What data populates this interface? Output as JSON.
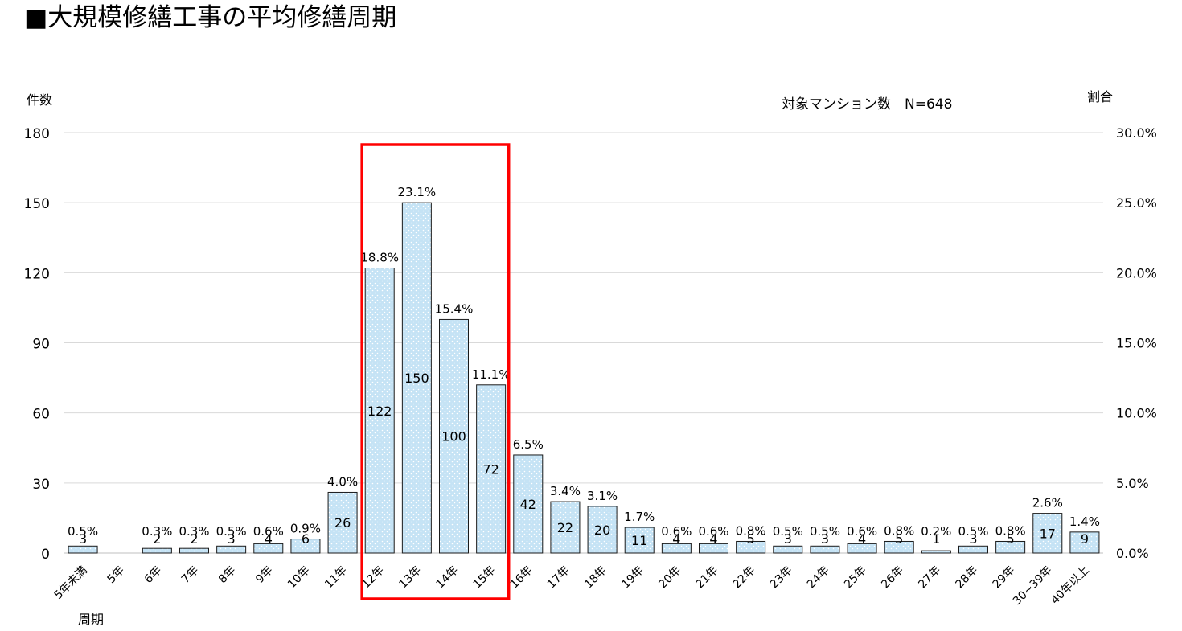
{
  "title": "■大規模修繕工事の平均修繕周期",
  "chart_data": {
    "type": "bar",
    "title": "■大規模修繕工事の平均修繕周期",
    "ylabel_left": "件数",
    "ylabel_right": "割合",
    "xlabel": "周期",
    "annotation": "対象マンション数　N=648",
    "ylim_left": [
      0,
      180
    ],
    "yticks_left": [
      "0",
      "30",
      "60",
      "90",
      "120",
      "150",
      "180"
    ],
    "ylim_right": [
      0,
      30
    ],
    "yticks_right": [
      "0.0%",
      "5.0%",
      "10.0%",
      "15.0%",
      "20.0%",
      "25.0%",
      "30.0%"
    ],
    "grid": true,
    "categories": [
      "5年未満",
      "5年",
      "6年",
      "7年",
      "8年",
      "9年",
      "10年",
      "11年",
      "12年",
      "13年",
      "14年",
      "15年",
      "16年",
      "17年",
      "18年",
      "19年",
      "20年",
      "21年",
      "22年",
      "23年",
      "24年",
      "25年",
      "26年",
      "27年",
      "28年",
      "29年",
      "30~39年",
      "40年以上"
    ],
    "values": [
      3,
      null,
      2,
      2,
      3,
      4,
      6,
      26,
      122,
      150,
      100,
      72,
      42,
      22,
      20,
      11,
      4,
      4,
      5,
      3,
      3,
      4,
      5,
      1,
      3,
      5,
      17,
      9
    ],
    "percent_labels": [
      "0.5%",
      "",
      "0.3%",
      "0.3%",
      "0.5%",
      "0.6%",
      "0.9%",
      "4.0%",
      "18.8%",
      "23.1%",
      "15.4%",
      "11.1%",
      "6.5%",
      "3.4%",
      "3.1%",
      "1.7%",
      "0.6%",
      "0.6%",
      "0.8%",
      "0.5%",
      "0.5%",
      "0.6%",
      "0.8%",
      "0.2%",
      "0.5%",
      "0.8%",
      "2.6%",
      "1.4%"
    ],
    "highlight": {
      "from": "12年",
      "to": "15年",
      "color": "#ff0000"
    },
    "bar_color": "#c5e3f5",
    "bar_border": "#1a1a1a",
    "grid_color": "#d9d9d9"
  }
}
